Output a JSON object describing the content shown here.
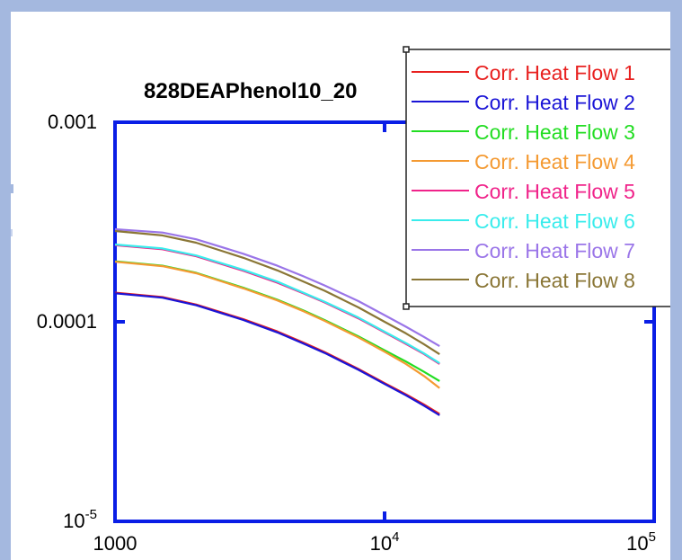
{
  "chart_data": {
    "type": "line",
    "title": "828DEAPhenol10_20",
    "xlabel": "",
    "ylabel": "",
    "x_scale": "log",
    "y_scale": "log",
    "xlim": [
      1000,
      100000
    ],
    "ylim": [
      1e-05,
      0.001
    ],
    "x_ticks": [
      {
        "value": 1000,
        "base": "1000",
        "exp": ""
      },
      {
        "value": 10000,
        "base": "10",
        "exp": "4"
      },
      {
        "value": 100000,
        "base": "10",
        "exp": "5"
      }
    ],
    "y_ticks": [
      {
        "value": 0.001,
        "base": "0.001",
        "exp": ""
      },
      {
        "value": 0.0001,
        "base": "0.0001",
        "exp": ""
      },
      {
        "value": 1e-05,
        "base": "10",
        "exp": "-5"
      }
    ],
    "legend_position": "top-right",
    "grid": false,
    "axis_color": "#0a1ee6",
    "frame_color": "#a4b8df",
    "series": [
      {
        "name": "Corr. Heat Flow 1",
        "color": "#e8201f",
        "x": [
          1000,
          1500,
          2000,
          3000,
          4000,
          5000,
          6000,
          8000,
          10000,
          12000,
          14000,
          16000
        ],
        "y": [
          0.00014,
          0.000133,
          0.000122,
          0.000103,
          8.95e-05,
          7.87e-05,
          7.05e-05,
          5.8e-05,
          4.93e-05,
          4.33e-05,
          3.85e-05,
          3.45e-05
        ]
      },
      {
        "name": "Corr. Heat Flow 2",
        "color": "#1a14d6",
        "x": [
          1000,
          1500,
          2000,
          3000,
          4000,
          5000,
          6000,
          8000,
          10000,
          12000,
          14000,
          16000
        ],
        "y": [
          0.000139,
          0.000132,
          0.000121,
          0.000102,
          8.85e-05,
          7.78e-05,
          6.98e-05,
          5.75e-05,
          4.88e-05,
          4.28e-05,
          3.8e-05,
          3.4e-05
        ]
      },
      {
        "name": "Corr. Heat Flow 3",
        "color": "#22dd22",
        "x": [
          1000,
          1500,
          2000,
          3000,
          4000,
          5000,
          6000,
          8000,
          10000,
          12000,
          14000,
          16000
        ],
        "y": [
          0.000201,
          0.000191,
          0.000176,
          0.000148,
          0.000129,
          0.000114,
          0.000102,
          8.45e-05,
          7.2e-05,
          6.32e-05,
          5.62e-05,
          5.05e-05
        ]
      },
      {
        "name": "Corr. Heat Flow 4",
        "color": "#f49a32",
        "x": [
          1000,
          1500,
          2000,
          3000,
          4000,
          5000,
          6000,
          8000,
          10000,
          12000,
          14000,
          16000
        ],
        "y": [
          0.0002,
          0.00019,
          0.000175,
          0.000147,
          0.000128,
          0.000113,
          0.000101,
          8.35e-05,
          7.08e-05,
          6.15e-05,
          5.35e-05,
          4.65e-05
        ]
      },
      {
        "name": "Corr. Heat Flow 5",
        "color": "#f0238a",
        "x": [
          1000,
          1500,
          2000,
          3000,
          4000,
          5000,
          6000,
          8000,
          10000,
          12000,
          14000,
          16000
        ],
        "y": [
          0.000242,
          0.000231,
          0.000213,
          0.00018,
          0.000157,
          0.000139,
          0.000125,
          0.000104,
          8.85e-05,
          7.75e-05,
          6.9e-05,
          6.15e-05
        ]
      },
      {
        "name": "Corr. Heat Flow 6",
        "color": "#39ecec",
        "x": [
          1000,
          1500,
          2000,
          3000,
          4000,
          5000,
          6000,
          8000,
          10000,
          12000,
          14000,
          16000
        ],
        "y": [
          0.000244,
          0.000233,
          0.000215,
          0.000182,
          0.000159,
          0.00014,
          0.000126,
          0.000105,
          8.92e-05,
          7.82e-05,
          6.95e-05,
          6.2e-05
        ]
      },
      {
        "name": "Corr. Heat Flow 7",
        "color": "#9a75e8",
        "x": [
          1000,
          1500,
          2000,
          3000,
          4000,
          5000,
          6000,
          8000,
          10000,
          12000,
          14000,
          16000
        ],
        "y": [
          0.000291,
          0.00028,
          0.000259,
          0.000219,
          0.000191,
          0.000169,
          0.000152,
          0.000127,
          0.000108,
          9.45e-05,
          8.4e-05,
          7.55e-05
        ]
      },
      {
        "name": "Corr. Heat Flow 8",
        "color": "#8a7636",
        "x": [
          1000,
          1500,
          2000,
          3000,
          4000,
          5000,
          6000,
          8000,
          10000,
          12000,
          14000,
          16000
        ],
        "y": [
          0.000285,
          0.000271,
          0.000249,
          0.000209,
          0.000181,
          0.000159,
          0.000143,
          0.000118,
          0.0001,
          8.75e-05,
          7.72e-05,
          6.88e-05
        ]
      }
    ]
  }
}
